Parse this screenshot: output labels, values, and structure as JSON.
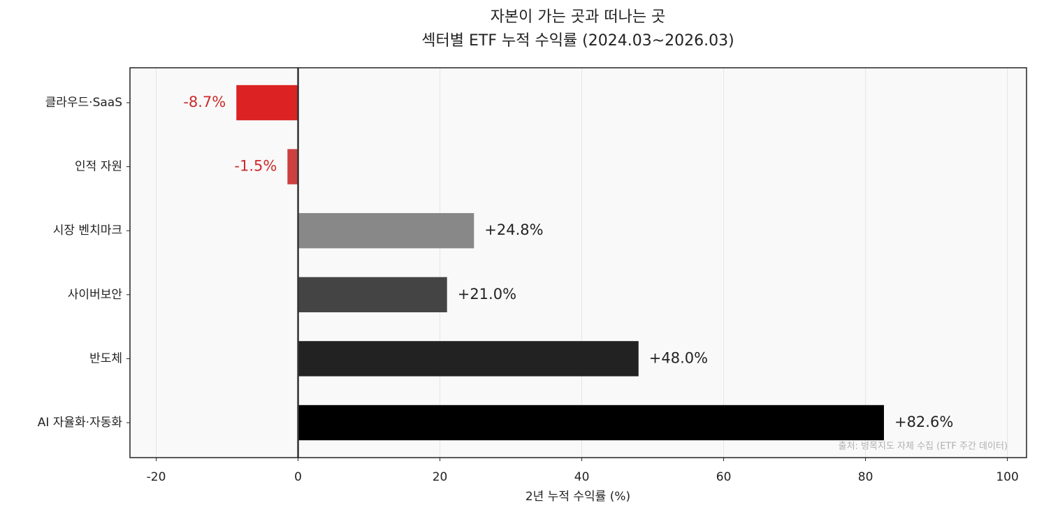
{
  "chart_data": {
    "type": "barh",
    "title": "자본이 가는 곳과 떠나는 곳",
    "subtitle": "섹터별 ETF 누적 수익률 (2024.03~2026.03)",
    "categories": [
      "클라우드·SaaS",
      "인적 자원",
      "시장 벤치마크",
      "사이버보안",
      "반도체",
      "AI 자율화·자동화"
    ],
    "values": [
      -8.7,
      -1.5,
      24.8,
      21.0,
      48.0,
      82.6
    ],
    "value_labels": [
      "-8.7%",
      "-1.5%",
      "+24.8%",
      "+21.0%",
      "+48.0%",
      "+82.6%"
    ],
    "colors": [
      "#dc2222",
      "#cc4040",
      "#888888",
      "#444444",
      "#222222",
      "#000000"
    ],
    "value_label_colors": [
      "#cc2b2b",
      "#cc2b2b",
      "#222222",
      "#222222",
      "#222222",
      "#222222"
    ],
    "xlabel": "2년 누적 수익률 (%)",
    "xlim": [
      -23.7,
      102.7
    ],
    "xticks": [
      -20,
      0,
      20,
      40,
      60,
      80,
      100
    ],
    "grid": true,
    "annotation": "출처: 병목지도 자체 수집 (ETF 주간 데이터)"
  }
}
